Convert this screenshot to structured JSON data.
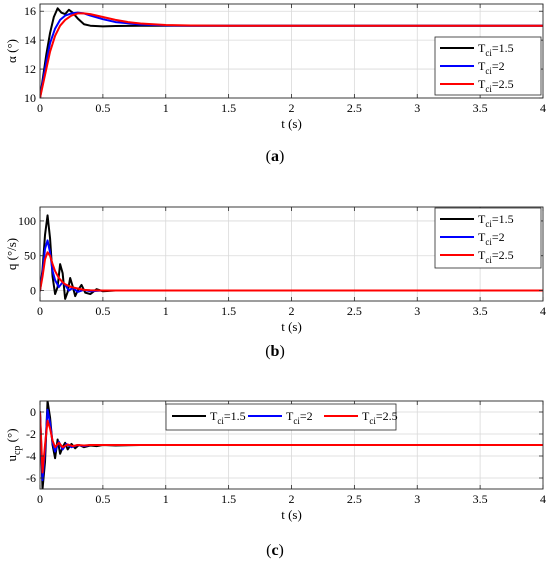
{
  "chart_data": [
    {
      "type": "line",
      "panel_label": "(a)",
      "panel_letter": "a",
      "xlabel": "t (s)",
      "ylabel": "α (°)",
      "ylabel_main": "α",
      "ylabel_sub": "",
      "ylabel_unit": " (°)",
      "xlim": [
        0,
        4
      ],
      "ylim": [
        10,
        16.5
      ],
      "xticks": [
        0,
        0.5,
        1,
        1.5,
        2,
        2.5,
        3,
        3.5,
        4
      ],
      "yticks": [
        10,
        12,
        14,
        16
      ],
      "grid": true,
      "legend_position": "right",
      "series": [
        {
          "name": "Tci=1.5",
          "name_main": "T",
          "name_sub": "ci",
          "name_suffix": "=1.5",
          "color": "#000000",
          "x": [
            0,
            0.02,
            0.05,
            0.08,
            0.11,
            0.14,
            0.17,
            0.2,
            0.23,
            0.26,
            0.3,
            0.35,
            0.4,
            0.5,
            0.6,
            0.8,
            1.0,
            1.5,
            2.0,
            4.0
          ],
          "y": [
            10,
            11.2,
            13.0,
            14.5,
            15.6,
            16.2,
            15.9,
            15.8,
            16.1,
            15.9,
            15.5,
            15.1,
            15.0,
            14.95,
            14.98,
            15.0,
            15.0,
            15.0,
            15.0,
            15.0
          ]
        },
        {
          "name": "Tci=2",
          "name_main": "T",
          "name_sub": "ci",
          "name_suffix": "=2",
          "color": "#0000ff",
          "x": [
            0,
            0.02,
            0.05,
            0.08,
            0.12,
            0.16,
            0.2,
            0.25,
            0.3,
            0.35,
            0.4,
            0.5,
            0.6,
            0.8,
            1.0,
            1.2,
            1.5,
            2.0,
            4.0
          ],
          "y": [
            10,
            11.0,
            12.5,
            13.8,
            14.8,
            15.4,
            15.7,
            15.85,
            15.9,
            15.85,
            15.7,
            15.45,
            15.25,
            15.08,
            15.02,
            15.0,
            15.0,
            15.0,
            15.0
          ]
        },
        {
          "name": "Tci=2.5",
          "name_main": "T",
          "name_sub": "ci",
          "name_suffix": "=2.5",
          "color": "#ff0000",
          "x": [
            0,
            0.02,
            0.05,
            0.08,
            0.12,
            0.16,
            0.2,
            0.25,
            0.3,
            0.35,
            0.4,
            0.5,
            0.6,
            0.7,
            0.8,
            1.0,
            1.2,
            1.5,
            2.0,
            4.0
          ],
          "y": [
            10,
            10.8,
            12.0,
            13.2,
            14.3,
            15.0,
            15.4,
            15.7,
            15.85,
            15.85,
            15.8,
            15.6,
            15.4,
            15.25,
            15.15,
            15.05,
            15.01,
            15.0,
            15.0,
            15.0
          ]
        }
      ]
    },
    {
      "type": "line",
      "panel_label": "(b)",
      "panel_letter": "b",
      "xlabel": "t (s)",
      "ylabel": "q (°/s)",
      "ylabel_main": "q",
      "ylabel_sub": "",
      "ylabel_unit": " (°/s)",
      "xlim": [
        0,
        4
      ],
      "ylim": [
        -15,
        120
      ],
      "xticks": [
        0,
        0.5,
        1,
        1.5,
        2,
        2.5,
        3,
        3.5,
        4
      ],
      "yticks": [
        0,
        50,
        100
      ],
      "grid": true,
      "legend_position": "right",
      "series": [
        {
          "name": "Tci=1.5",
          "name_main": "T",
          "name_sub": "ci",
          "name_suffix": "=1.5",
          "color": "#000000",
          "x": [
            0,
            0.02,
            0.04,
            0.06,
            0.08,
            0.1,
            0.12,
            0.14,
            0.16,
            0.18,
            0.2,
            0.22,
            0.24,
            0.26,
            0.28,
            0.3,
            0.33,
            0.36,
            0.4,
            0.45,
            0.5,
            0.6,
            1.0,
            4.0
          ],
          "y": [
            0,
            30,
            80,
            108,
            75,
            20,
            -5,
            5,
            38,
            25,
            -12,
            -2,
            18,
            6,
            -8,
            0,
            8,
            -3,
            -5,
            2,
            -1,
            0,
            0,
            0
          ]
        },
        {
          "name": "Tci=2",
          "name_main": "T",
          "name_sub": "ci",
          "name_suffix": "=2",
          "color": "#0000ff",
          "x": [
            0,
            0.02,
            0.04,
            0.06,
            0.08,
            0.1,
            0.12,
            0.15,
            0.18,
            0.2,
            0.23,
            0.26,
            0.3,
            0.35,
            0.4,
            0.5,
            1.0,
            4.0
          ],
          "y": [
            0,
            25,
            60,
            72,
            55,
            28,
            15,
            5,
            12,
            8,
            0,
            4,
            -2,
            1,
            -1,
            0,
            0,
            0
          ]
        },
        {
          "name": "Tci=2.5",
          "name_main": "T",
          "name_sub": "ci",
          "name_suffix": "=2.5",
          "color": "#ff0000",
          "x": [
            0,
            0.02,
            0.04,
            0.06,
            0.08,
            0.1,
            0.12,
            0.15,
            0.18,
            0.2,
            0.25,
            0.3,
            0.35,
            0.4,
            0.5,
            0.6,
            1.0,
            4.0
          ],
          "y": [
            0,
            20,
            45,
            55,
            50,
            38,
            28,
            18,
            12,
            9,
            5,
            3,
            1,
            0.5,
            0,
            0,
            0,
            0
          ]
        }
      ]
    },
    {
      "type": "line",
      "panel_label": "(c)",
      "panel_letter": "c",
      "xlabel": "t (s)",
      "ylabel": "ucp (°)",
      "ylabel_main": "u",
      "ylabel_sub": "cp",
      "ylabel_unit": " (°)",
      "xlim": [
        0,
        4
      ],
      "ylim": [
        -7,
        1
      ],
      "xticks": [
        0,
        0.5,
        1,
        1.5,
        2,
        2.5,
        3,
        3.5,
        4
      ],
      "yticks": [
        -6,
        -4,
        -2,
        0
      ],
      "grid": true,
      "legend_position": "top",
      "series": [
        {
          "name": "Tci=1.5",
          "name_main": "T",
          "name_sub": "ci",
          "name_suffix": "=1.5",
          "color": "#000000",
          "x": [
            0,
            0.02,
            0.04,
            0.06,
            0.08,
            0.1,
            0.12,
            0.14,
            0.16,
            0.18,
            0.2,
            0.22,
            0.25,
            0.28,
            0.31,
            0.35,
            0.4,
            0.45,
            0.5,
            0.6,
            0.8,
            1.0,
            4.0
          ],
          "y": [
            0,
            -7,
            -4.5,
            1,
            -0.5,
            -3,
            -4.2,
            -2.5,
            -3.8,
            -3.2,
            -2.8,
            -3.4,
            -2.9,
            -3.3,
            -3.0,
            -3.2,
            -3.05,
            -3.1,
            -3.0,
            -3.05,
            -3.0,
            -3.0,
            -3.0
          ]
        },
        {
          "name": "Tci=2",
          "name_main": "T",
          "name_sub": "ci",
          "name_suffix": "=2",
          "color": "#0000ff",
          "x": [
            0,
            0.02,
            0.04,
            0.06,
            0.08,
            0.1,
            0.12,
            0.15,
            0.18,
            0.21,
            0.25,
            0.3,
            0.35,
            0.4,
            0.5,
            1.0,
            4.0
          ],
          "y": [
            0,
            -6.2,
            -3.5,
            0.2,
            -1.0,
            -2.8,
            -3.6,
            -2.7,
            -3.4,
            -2.9,
            -3.2,
            -3.0,
            -3.1,
            -3.0,
            -3.0,
            -3.0,
            -3.0
          ]
        },
        {
          "name": "Tci=2.5",
          "name_main": "T",
          "name_sub": "ci",
          "name_suffix": "=2.5",
          "color": "#ff0000",
          "x": [
            0,
            0.02,
            0.04,
            0.06,
            0.08,
            0.1,
            0.12,
            0.15,
            0.18,
            0.22,
            0.26,
            0.3,
            0.35,
            0.4,
            0.5,
            1.0,
            4.0
          ],
          "y": [
            0,
            -5.5,
            -3.0,
            -0.8,
            -1.5,
            -2.6,
            -3.2,
            -2.8,
            -3.2,
            -2.95,
            -3.1,
            -3.0,
            -3.05,
            -3.0,
            -3.0,
            -3.0,
            -3.0
          ]
        }
      ]
    }
  ]
}
